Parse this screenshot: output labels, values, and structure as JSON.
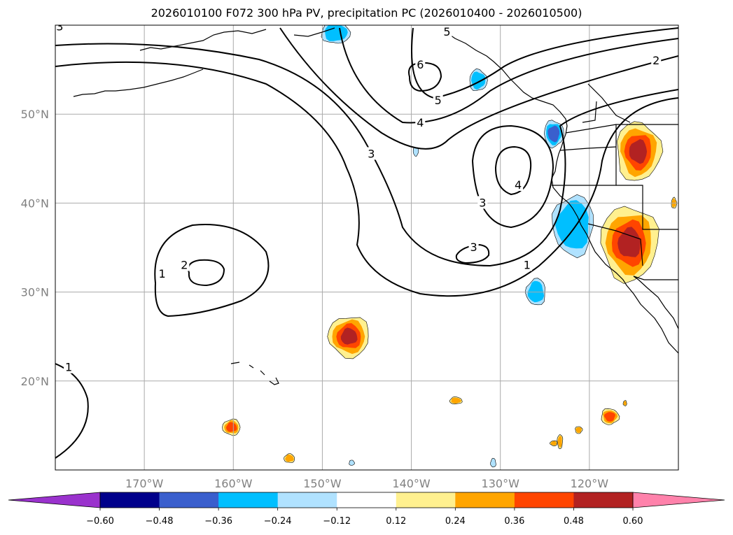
{
  "title": "2026010100 F072 300 hPa PV, precipitation PC (2026010400 - 2026010500)",
  "map": {
    "lon_range": [
      -180,
      -110
    ],
    "lat_range": [
      10,
      60
    ],
    "lon_ticks": [
      {
        "value": -170,
        "label": "170°W"
      },
      {
        "value": -160,
        "label": "160°W"
      },
      {
        "value": -150,
        "label": "150°W"
      },
      {
        "value": -140,
        "label": "140°W"
      },
      {
        "value": -130,
        "label": "130°W"
      },
      {
        "value": -120,
        "label": "120°W"
      }
    ],
    "lat_ticks": [
      {
        "value": 20,
        "label": "20°N"
      },
      {
        "value": 30,
        "label": "30°N"
      },
      {
        "value": 40,
        "label": "40°N"
      },
      {
        "value": 50,
        "label": "50°N"
      }
    ],
    "gridlines": true,
    "contour_labels": [
      {
        "text": "1",
        "lon": -178.5,
        "lat": 21.5
      },
      {
        "text": "1",
        "lon": -168.0,
        "lat": 32.0
      },
      {
        "text": "2",
        "lon": -165.5,
        "lat": 33.0
      },
      {
        "text": "1",
        "lon": -127.0,
        "lat": 33.0
      },
      {
        "text": "3",
        "lon": -144.5,
        "lat": 45.5
      },
      {
        "text": "3",
        "lon": -132.0,
        "lat": 40.0
      },
      {
        "text": "3",
        "lon": -133.0,
        "lat": 35.0
      },
      {
        "text": "4",
        "lon": -139.0,
        "lat": 49.0
      },
      {
        "text": "4",
        "lon": -128.0,
        "lat": 42.0
      },
      {
        "text": "5",
        "lon": -137.0,
        "lat": 51.5
      },
      {
        "text": "5",
        "lon": -136.0,
        "lat": 59.2
      },
      {
        "text": "6",
        "lon": -139.0,
        "lat": 55.5
      },
      {
        "text": "2",
        "lon": -112.5,
        "lat": 56.0
      },
      {
        "text": "3",
        "lon": -179.5,
        "lat": 59.8
      }
    ],
    "precip_areas": [
      {
        "lon": -148.5,
        "lat": 59.2,
        "rx": 1.6,
        "ry": 1.3,
        "sign": "neg",
        "strength": 2
      },
      {
        "lon": -132.5,
        "lat": 53.8,
        "rx": 1.0,
        "ry": 1.2,
        "sign": "neg",
        "strength": 2
      },
      {
        "lon": -124.0,
        "lat": 47.8,
        "rx": 1.1,
        "ry": 1.5,
        "sign": "neg",
        "strength": 3
      },
      {
        "lon": -139.5,
        "lat": 45.8,
        "rx": 0.3,
        "ry": 0.5,
        "sign": "neg",
        "strength": 1
      },
      {
        "lon": -121.8,
        "lat": 37.5,
        "rx": 2.3,
        "ry": 3.4,
        "sign": "neg",
        "strength": 2
      },
      {
        "lon": -126.0,
        "lat": 30.0,
        "rx": 1.1,
        "ry": 1.5,
        "sign": "neg",
        "strength": 2
      },
      {
        "lon": -130.8,
        "lat": 10.8,
        "rx": 0.3,
        "ry": 0.5,
        "sign": "neg",
        "strength": 1
      },
      {
        "lon": -146.7,
        "lat": 10.8,
        "rx": 0.3,
        "ry": 0.3,
        "sign": "neg",
        "strength": 1
      },
      {
        "lon": -114.5,
        "lat": 45.8,
        "rx": 2.5,
        "ry": 3.3,
        "sign": "pos",
        "strength": 4
      },
      {
        "lon": -115.5,
        "lat": 35.5,
        "rx": 3.2,
        "ry": 4.2,
        "sign": "pos",
        "strength": 4
      },
      {
        "lon": -147.0,
        "lat": 25.0,
        "rx": 2.3,
        "ry": 2.3,
        "sign": "pos",
        "strength": 4
      },
      {
        "lon": -160.2,
        "lat": 14.8,
        "rx": 1.0,
        "ry": 0.9,
        "sign": "pos",
        "strength": 3
      },
      {
        "lon": -153.7,
        "lat": 11.3,
        "rx": 0.6,
        "ry": 0.5,
        "sign": "pos",
        "strength": 2
      },
      {
        "lon": -135.0,
        "lat": 17.8,
        "rx": 0.7,
        "ry": 0.4,
        "sign": "pos",
        "strength": 2
      },
      {
        "lon": -117.7,
        "lat": 16.0,
        "rx": 1.0,
        "ry": 0.9,
        "sign": "pos",
        "strength": 3
      },
      {
        "lon": -121.2,
        "lat": 14.5,
        "rx": 0.4,
        "ry": 0.4,
        "sign": "pos",
        "strength": 2
      },
      {
        "lon": -123.3,
        "lat": 13.2,
        "rx": 0.3,
        "ry": 0.8,
        "sign": "pos",
        "strength": 2
      },
      {
        "lon": -124.0,
        "lat": 13.0,
        "rx": 0.4,
        "ry": 0.3,
        "sign": "pos",
        "strength": 2
      },
      {
        "lon": -116.0,
        "lat": 17.5,
        "rx": 0.2,
        "ry": 0.3,
        "sign": "pos",
        "strength": 2
      },
      {
        "lon": -110.5,
        "lat": 40.0,
        "rx": 0.3,
        "ry": 0.6,
        "sign": "pos",
        "strength": 2
      }
    ]
  },
  "colorbar": {
    "tick_labels": [
      "−0.60",
      "−0.48",
      "−0.36",
      "−0.24",
      "−0.12",
      "0.12",
      "0.24",
      "0.36",
      "0.48",
      "0.60"
    ],
    "under_color": "#9a32cd",
    "over_color": "#ff82ab",
    "colors": [
      "#00008b",
      "#3a5fcd",
      "#00bfff",
      "#b0e2ff",
      "#ffffff",
      "#fff08f",
      "#ffa500",
      "#ff4500",
      "#b22222"
    ]
  }
}
